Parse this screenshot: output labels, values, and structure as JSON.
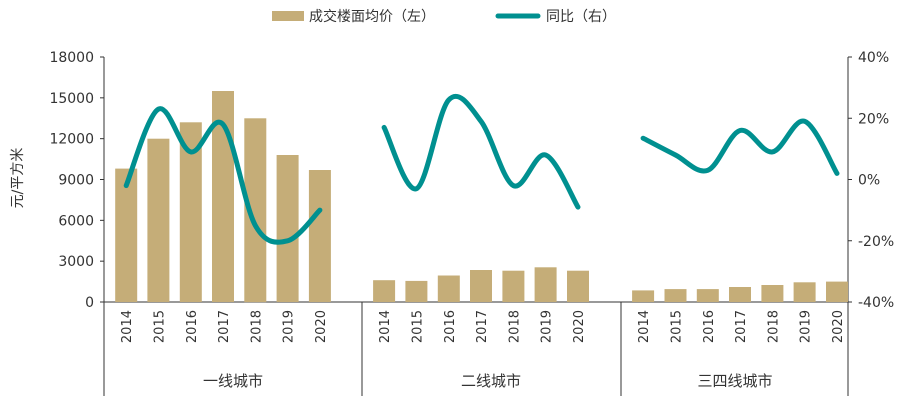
{
  "chart_data": {
    "type": "bar+line",
    "legend": {
      "placement": "top-center",
      "bar_label": "成交楼面均价（左）",
      "line_label": "同比（右）"
    },
    "ylabel_left": "元/平方米",
    "y_left": {
      "range": [
        0,
        18000
      ],
      "ticks": [
        "0",
        "3000",
        "6000",
        "9000",
        "12000",
        "15000",
        "18000"
      ]
    },
    "y_right": {
      "range": [
        -0.4,
        0.4
      ],
      "ticks": [
        "-40%",
        "-20%",
        "0%",
        "20%",
        "40%"
      ]
    },
    "years": [
      "2014",
      "2015",
      "2016",
      "2017",
      "2018",
      "2019",
      "2020"
    ],
    "groups": [
      {
        "name": "一线城市",
        "bar_values": [
          9800,
          12000,
          13200,
          15500,
          13500,
          10800,
          9700
        ],
        "yoy_values": [
          -0.02,
          0.23,
          0.09,
          0.18,
          -0.15,
          -0.2,
          -0.1
        ]
      },
      {
        "name": "二线城市",
        "bar_values": [
          1600,
          1550,
          1950,
          2350,
          2300,
          2550,
          2300
        ],
        "yoy_values": [
          0.17,
          -0.03,
          0.26,
          0.19,
          -0.02,
          0.08,
          -0.09
        ]
      },
      {
        "name": "三四线城市",
        "bar_values": [
          850,
          950,
          950,
          1100,
          1250,
          1450,
          1500
        ],
        "yoy_values": [
          0.135,
          0.08,
          0.03,
          0.16,
          0.09,
          0.19,
          0.02
        ]
      }
    ],
    "colors": {
      "bar": "#C5AD78",
      "line": "#009090",
      "axis": "#333333"
    },
    "grid": false
  }
}
